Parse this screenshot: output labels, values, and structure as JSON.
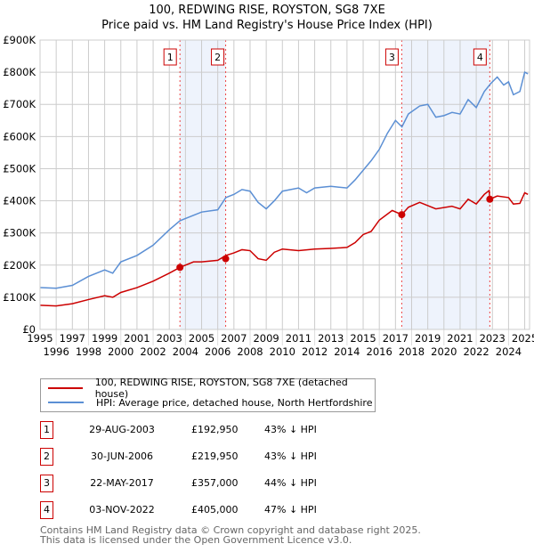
{
  "chart_data": {
    "type": "line",
    "title": "100, REDWING RISE, ROYSTON, SG8 7XE",
    "subtitle": "Price paid vs. HM Land Registry's House Price Index (HPI)",
    "xlim": [
      1995,
      2025.3
    ],
    "ylim": [
      0,
      900000
    ],
    "y_ticks": [
      0,
      100000,
      200000,
      300000,
      400000,
      500000,
      600000,
      700000,
      800000,
      900000
    ],
    "y_tick_labels": [
      "£0",
      "£100K",
      "£200K",
      "£300K",
      "£400K",
      "£500K",
      "£600K",
      "£700K",
      "£800K",
      "£900K"
    ],
    "x_ticks": [
      1995,
      1996,
      1997,
      1998,
      1999,
      2000,
      2001,
      2002,
      2003,
      2004,
      2005,
      2006,
      2007,
      2008,
      2009,
      2010,
      2011,
      2012,
      2013,
      2014,
      2015,
      2016,
      2017,
      2018,
      2019,
      2020,
      2021,
      2022,
      2023,
      2024,
      2025
    ],
    "grid": true,
    "legend_placement": "below",
    "series": [
      {
        "name": "100, REDWING RISE, ROYSTON, SG8 7XE (detached house)",
        "color": "#cc0000",
        "x": [
          1995,
          1996,
          1997,
          1998,
          1999,
          1999.5,
          2000,
          2001,
          2002,
          2003,
          2003.66,
          2004.5,
          2005,
          2006,
          2006.5,
          2007,
          2007.5,
          2008,
          2008.5,
          2009,
          2009.5,
          2010,
          2011,
          2012,
          2013,
          2014,
          2014.5,
          2015,
          2015.5,
          2016,
          2016.8,
          2017.39,
          2017.8,
          2018.5,
          2019,
          2019.5,
          2020.5,
          2021,
          2021.5,
          2022,
          2022.5,
          2022.8,
          2022.84,
          2023.3,
          2024,
          2024.3,
          2024.7,
          2025,
          2025.2
        ],
        "y": [
          75000,
          73000,
          80000,
          93000,
          105000,
          100000,
          115000,
          130000,
          150000,
          175000,
          192950,
          210000,
          210000,
          215000,
          230000,
          238000,
          248000,
          245000,
          220000,
          215000,
          240000,
          250000,
          245000,
          250000,
          252000,
          255000,
          270000,
          295000,
          305000,
          340000,
          370000,
          357000,
          380000,
          395000,
          385000,
          375000,
          383000,
          375000,
          405000,
          390000,
          420000,
          432000,
          405000,
          415000,
          410000,
          390000,
          392000,
          425000,
          420000
        ]
      },
      {
        "name": "HPI: Average price, detached house, North Hertfordshire",
        "color": "#5b8fd4",
        "x": [
          1995,
          1996,
          1997,
          1998,
          1999,
          1999.5,
          2000,
          2001,
          2002,
          2003,
          2003.66,
          2004.5,
          2005,
          2006,
          2006.5,
          2007,
          2007.5,
          2008,
          2008.5,
          2009,
          2009.5,
          2010,
          2011,
          2011.5,
          2012,
          2013,
          2014,
          2014.5,
          2015,
          2015.5,
          2016,
          2016.5,
          2017,
          2017.4,
          2017.8,
          2018.5,
          2019,
          2019.5,
          2020,
          2020.5,
          2021,
          2021.5,
          2022,
          2022.5,
          2022.9,
          2023.3,
          2023.7,
          2024,
          2024.3,
          2024.7,
          2025,
          2025.2
        ],
        "y": [
          130000,
          128000,
          137000,
          165000,
          185000,
          175000,
          210000,
          230000,
          262000,
          310000,
          338000,
          355000,
          365000,
          372000,
          410000,
          420000,
          435000,
          430000,
          395000,
          375000,
          400000,
          430000,
          440000,
          425000,
          440000,
          445000,
          440000,
          465000,
          495000,
          525000,
          560000,
          610000,
          650000,
          630000,
          670000,
          695000,
          700000,
          660000,
          665000,
          675000,
          670000,
          715000,
          690000,
          740000,
          765000,
          785000,
          760000,
          770000,
          730000,
          740000,
          800000,
          795000
        ]
      }
    ],
    "sales": [
      {
        "label": "1",
        "date": "29-AUG-2003",
        "x": 2003.66,
        "price": "£192,950",
        "value": 192950,
        "hpi": "43% ↓ HPI"
      },
      {
        "label": "2",
        "date": "30-JUN-2006",
        "x": 2006.49,
        "price": "£219,950",
        "value": 219950,
        "hpi": "43% ↓ HPI"
      },
      {
        "label": "3",
        "date": "22-MAY-2017",
        "x": 2017.39,
        "price": "£357,000",
        "value": 357000,
        "hpi": "44% ↓ HPI"
      },
      {
        "label": "4",
        "date": "03-NOV-2022",
        "x": 2022.84,
        "price": "£405,000",
        "value": 405000,
        "hpi": "47% ↓ HPI"
      }
    ],
    "shaded_ranges": [
      [
        2003.66,
        2006.49
      ],
      [
        2017.39,
        2022.84
      ]
    ]
  },
  "footer": {
    "line1": "Contains HM Land Registry data © Crown copyright and database right 2025.",
    "line2": "This data is licensed under the Open Government Licence v3.0."
  }
}
